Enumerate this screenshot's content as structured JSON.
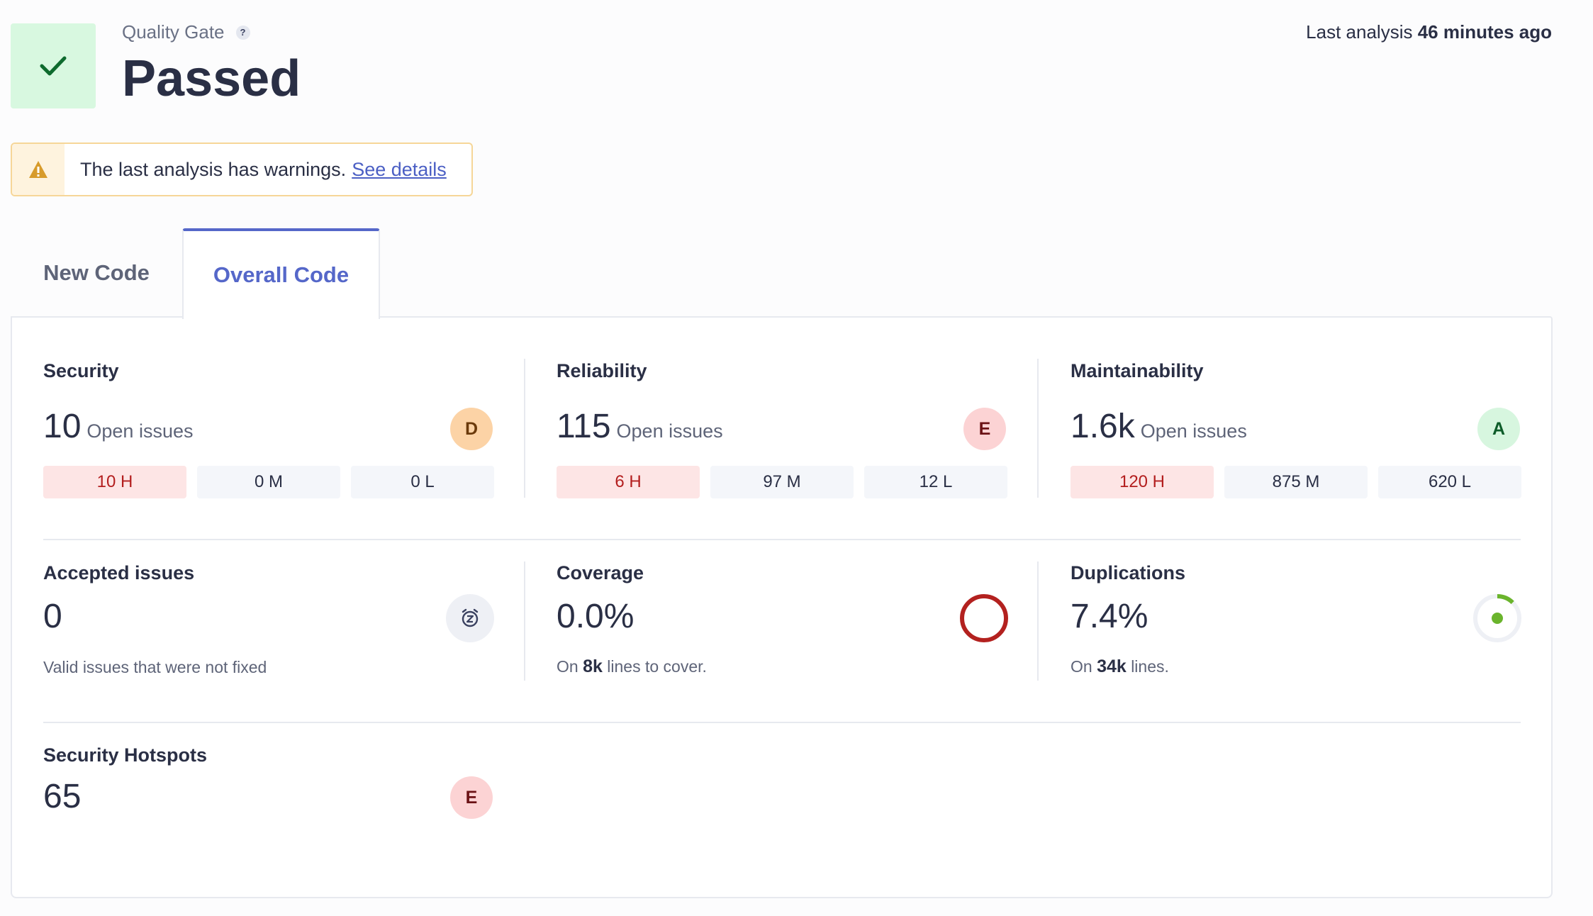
{
  "quality_gate": {
    "label": "Quality Gate",
    "help": "?",
    "status": "Passed"
  },
  "last_analysis": {
    "prefix": "Last analysis",
    "time": "46 minutes ago"
  },
  "warning": {
    "text": "The last analysis has warnings.",
    "link": "See details"
  },
  "tabs": [
    {
      "label": "New Code",
      "active": false
    },
    {
      "label": "Overall Code",
      "active": true
    }
  ],
  "security": {
    "title": "Security",
    "value": "10",
    "unit": "Open issues",
    "rating": "D",
    "severity": [
      "10 H",
      "0 M",
      "0 L"
    ]
  },
  "reliability": {
    "title": "Reliability",
    "value": "115",
    "unit": "Open issues",
    "rating": "E",
    "severity": [
      "6 H",
      "97 M",
      "12 L"
    ]
  },
  "maintainability": {
    "title": "Maintainability",
    "value": "1.6k",
    "unit": "Open issues",
    "rating": "A",
    "severity": [
      "120 H",
      "875 M",
      "620 L"
    ]
  },
  "accepted": {
    "title": "Accepted issues",
    "value": "0",
    "sub": "Valid issues that were not fixed"
  },
  "coverage": {
    "title": "Coverage",
    "value": "0.0%",
    "sub_prefix": "On",
    "sub_bold": "8k",
    "sub_suffix": "lines to cover.",
    "percent": 0.0
  },
  "duplications": {
    "title": "Duplications",
    "value": "7.4%",
    "sub_prefix": "On",
    "sub_bold": "34k",
    "sub_suffix": "lines.",
    "percent": 7.4
  },
  "hotspots": {
    "title": "Security Hotspots",
    "value": "65",
    "rating": "E"
  },
  "colors": {
    "accent": "#5567c9",
    "passed": "#d8f8e0",
    "coverage_ring": "#b3211f",
    "duplication_ring": "#6ab42c"
  }
}
